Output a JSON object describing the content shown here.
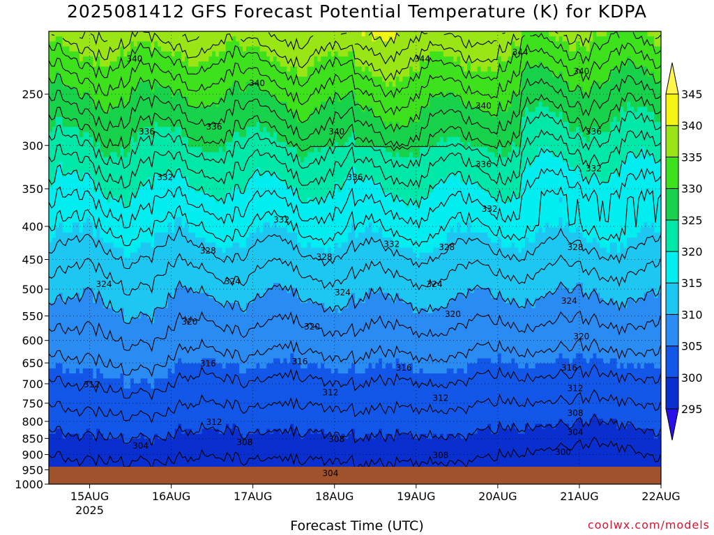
{
  "title": "2025081412 GFS Forecast Potential Temperature (K) for KDPA",
  "watermark": "coolwx.com/models",
  "chart_data": {
    "type": "heatmap",
    "title": "2025081412 GFS Forecast Potential Temperature (K) for KDPA",
    "xlabel": "Forecast Time (UTC)",
    "ylabel": "",
    "x_ticks": [
      "15AUG",
      "16AUG",
      "17AUG",
      "18AUG",
      "19AUG",
      "20AUG",
      "21AUG",
      "22AUG"
    ],
    "x_tick_sublabel": "2025",
    "x_range": [
      "2025-08-14 12Z",
      "2025-08-22 00Z"
    ],
    "y_ticks": [
      250,
      300,
      350,
      400,
      450,
      500,
      550,
      600,
      650,
      700,
      750,
      800,
      850,
      900,
      950,
      1000
    ],
    "y_range_hPa": [
      200,
      1000
    ],
    "y_scale": "log-pressure",
    "colorbar": {
      "levels": [
        295,
        300,
        305,
        310,
        315,
        320,
        325,
        330,
        335,
        340,
        345
      ],
      "colors": [
        "#2a10e8",
        "#0a2fcf",
        "#1257e8",
        "#2a8cf2",
        "#1ec6f2",
        "#00eef0",
        "#00e8a8",
        "#17d24a",
        "#3ee21c",
        "#9ae516",
        "#f5f515",
        "#fff54a"
      ],
      "extend": "both"
    },
    "contour_interval": 2,
    "contour_labels": [
      {
        "t": 0.14,
        "p": 220,
        "v": 340
      },
      {
        "t": 0.16,
        "p": 285,
        "v": 336
      },
      {
        "t": 0.19,
        "p": 335,
        "v": 332
      },
      {
        "t": 0.26,
        "p": 435,
        "v": 328
      },
      {
        "t": 0.09,
        "p": 490,
        "v": 324
      },
      {
        "t": 0.23,
        "p": 560,
        "v": 320
      },
      {
        "t": 0.26,
        "p": 650,
        "v": 316
      },
      {
        "t": 0.07,
        "p": 700,
        "v": 312
      },
      {
        "t": 0.27,
        "p": 800,
        "v": 312
      },
      {
        "t": 0.15,
        "p": 870,
        "v": 304
      },
      {
        "t": 0.32,
        "p": 860,
        "v": 308
      },
      {
        "t": 0.34,
        "p": 240,
        "v": 340
      },
      {
        "t": 0.27,
        "p": 280,
        "v": 336
      },
      {
        "t": 0.38,
        "p": 390,
        "v": 332
      },
      {
        "t": 0.3,
        "p": 485,
        "v": 324
      },
      {
        "t": 0.45,
        "p": 445,
        "v": 328
      },
      {
        "t": 0.47,
        "p": 285,
        "v": 340
      },
      {
        "t": 0.5,
        "p": 335,
        "v": 336
      },
      {
        "t": 0.48,
        "p": 505,
        "v": 324
      },
      {
        "t": 0.43,
        "p": 570,
        "v": 320
      },
      {
        "t": 0.41,
        "p": 645,
        "v": 316
      },
      {
        "t": 0.46,
        "p": 720,
        "v": 312
      },
      {
        "t": 0.47,
        "p": 850,
        "v": 308
      },
      {
        "t": 0.46,
        "p": 960,
        "v": 304
      },
      {
        "t": 0.56,
        "p": 425,
        "v": 332
      },
      {
        "t": 0.58,
        "p": 660,
        "v": 316
      },
      {
        "t": 0.61,
        "p": 220,
        "v": 344
      },
      {
        "t": 0.65,
        "p": 430,
        "v": 328
      },
      {
        "t": 0.66,
        "p": 545,
        "v": 320
      },
      {
        "t": 0.63,
        "p": 490,
        "v": 324
      },
      {
        "t": 0.64,
        "p": 735,
        "v": 312
      },
      {
        "t": 0.64,
        "p": 900,
        "v": 308
      },
      {
        "t": 0.71,
        "p": 260,
        "v": 340
      },
      {
        "t": 0.71,
        "p": 320,
        "v": 336
      },
      {
        "t": 0.72,
        "p": 375,
        "v": 332
      },
      {
        "t": 0.77,
        "p": 215,
        "v": 344
      },
      {
        "t": 0.87,
        "p": 230,
        "v": 340
      },
      {
        "t": 0.89,
        "p": 285,
        "v": 336
      },
      {
        "t": 0.89,
        "p": 325,
        "v": 332
      },
      {
        "t": 0.86,
        "p": 430,
        "v": 328
      },
      {
        "t": 0.85,
        "p": 520,
        "v": 324
      },
      {
        "t": 0.87,
        "p": 590,
        "v": 320
      },
      {
        "t": 0.85,
        "p": 660,
        "v": 316
      },
      {
        "t": 0.86,
        "p": 710,
        "v": 312
      },
      {
        "t": 0.86,
        "p": 775,
        "v": 308
      },
      {
        "t": 0.86,
        "p": 830,
        "v": 304
      },
      {
        "t": 0.84,
        "p": 890,
        "v": 300
      }
    ]
  }
}
